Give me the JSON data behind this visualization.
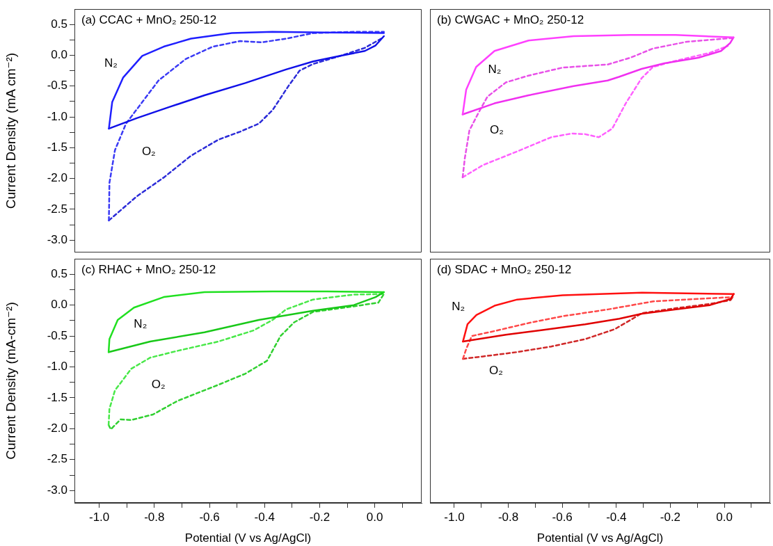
{
  "chart_data": [
    {
      "type": "line",
      "title": "(a) CCAC + MnO₂ 250-12",
      "ylabel": "Current Density (mA cm⁻²)",
      "tick_labels": "y",
      "xlim": [
        -1.09,
        0.17
      ],
      "ylim": [
        -3.2,
        0.75
      ],
      "yticks": [
        {
          "value": 0.5,
          "label": "0.5"
        },
        {
          "value": 0.25,
          "label": null
        },
        {
          "value": 0,
          "label": "0.0"
        },
        {
          "value": -0.25,
          "label": null
        },
        {
          "value": -0.5,
          "label": "-0.5"
        },
        {
          "value": -0.75,
          "label": null
        },
        {
          "value": -1.0,
          "label": "-1.0"
        },
        {
          "value": -1.25,
          "label": null
        },
        {
          "value": -1.5,
          "label": "-1.5"
        },
        {
          "value": -1.75,
          "label": null
        },
        {
          "value": -2.0,
          "label": "-2.0"
        },
        {
          "value": -2.25,
          "label": null
        },
        {
          "value": -2.5,
          "label": "-2.5"
        },
        {
          "value": -2.75,
          "label": null
        },
        {
          "value": -3.0,
          "label": "-3.0"
        }
      ],
      "series": [
        {
          "name": "N₂",
          "color": "#1f1fff",
          "line_style": "solid",
          "x": [
            -0.965,
            -0.953,
            -0.913,
            -0.844,
            -0.766,
            -0.667,
            -0.519,
            -0.372,
            -0.175,
            0.033
          ],
          "values": [
            -1.19,
            -0.76,
            -0.36,
            -0.01,
            0.14,
            0.27,
            0.36,
            0.38,
            0.37,
            0.36
          ]
        },
        {
          "color": "#1010e8",
          "line_style": "solid",
          "x": [
            -0.965,
            -0.864,
            -0.746,
            -0.618,
            -0.47,
            -0.322,
            -0.223,
            -0.125,
            -0.036,
            0.003,
            0.033
          ],
          "values": [
            -1.19,
            -1.02,
            -0.84,
            -0.65,
            -0.45,
            -0.23,
            -0.1,
            -0.01,
            0.07,
            0.16,
            0.31
          ]
        },
        {
          "name": "O₂",
          "color": "#3a3af5",
          "line_style": "dashed",
          "x": [
            -0.965,
            -0.963,
            -0.943,
            -0.903,
            -0.844,
            -0.785,
            -0.686,
            -0.588,
            -0.489,
            -0.41,
            -0.322,
            -0.223,
            -0.076,
            0.033
          ],
          "values": [
            -2.68,
            -2.07,
            -1.54,
            -1.11,
            -0.76,
            -0.41,
            -0.06,
            0.14,
            0.23,
            0.21,
            0.27,
            0.36,
            0.38,
            0.38
          ]
        },
        {
          "color": "#2b2bd8",
          "line_style": "dashed",
          "x": [
            -0.965,
            -0.864,
            -0.765,
            -0.667,
            -0.568,
            -0.489,
            -0.421,
            -0.371,
            -0.312,
            -0.273,
            -0.223,
            -0.125,
            -0.036,
            0.023
          ],
          "values": [
            -2.68,
            -2.29,
            -1.98,
            -1.63,
            -1.37,
            -1.24,
            -1.11,
            -0.89,
            -0.49,
            -0.25,
            -0.14,
            -0.01,
            0.12,
            0.27
          ]
        }
      ]
    },
    {
      "type": "line",
      "title": "(b) CWGAC + MnO₂ 250-12",
      "tick_labels": false,
      "xlim": [
        -1.09,
        0.17
      ],
      "ylim": [
        -3.2,
        0.75
      ],
      "series": [
        {
          "name": "N₂",
          "color": "#ff40ff",
          "line_style": "solid",
          "x": [
            -0.969,
            -0.956,
            -0.919,
            -0.851,
            -0.725,
            -0.558,
            -0.348,
            -0.18,
            0.034
          ],
          "values": [
            -0.96,
            -0.56,
            -0.19,
            0.07,
            0.24,
            0.31,
            0.33,
            0.33,
            0.29
          ]
        },
        {
          "color": "#f030f0",
          "line_style": "solid",
          "x": [
            -0.969,
            -0.851,
            -0.725,
            -0.558,
            -0.432,
            -0.39,
            -0.306,
            -0.222,
            -0.096,
            -0.012,
            0.022,
            0.034
          ],
          "values": [
            -0.96,
            -0.78,
            -0.65,
            -0.5,
            -0.41,
            -0.35,
            -0.22,
            -0.13,
            -0.04,
            0.07,
            0.2,
            0.29
          ]
        },
        {
          "name": "O₂",
          "color": "#e850e8",
          "line_style": "dashed",
          "x": [
            -0.969,
            -0.961,
            -0.944,
            -0.91,
            -0.877,
            -0.809,
            -0.725,
            -0.599,
            -0.432,
            -0.348,
            -0.264,
            -0.138,
            0.03
          ],
          "values": [
            -1.98,
            -1.67,
            -1.22,
            -0.93,
            -0.67,
            -0.44,
            -0.33,
            -0.2,
            -0.15,
            -0.04,
            0.11,
            0.22,
            0.28
          ]
        },
        {
          "color": "#ff60ff",
          "line_style": "dashed",
          "x": [
            -0.969,
            -0.893,
            -0.767,
            -0.641,
            -0.566,
            -0.516,
            -0.465,
            -0.415,
            -0.365,
            -0.306,
            -0.264,
            -0.18,
            -0.054,
            0.013
          ],
          "values": [
            -1.98,
            -1.78,
            -1.56,
            -1.33,
            -1.27,
            -1.28,
            -1.33,
            -1.19,
            -0.78,
            -0.37,
            -0.19,
            -0.09,
            0.04,
            0.15
          ]
        }
      ]
    },
    {
      "type": "line",
      "title": "(c) RHAC + MnO₂ 250-12",
      "xlabel": "Potential (V vs Ag/AgCl)",
      "ylabel": "Current Density (mA-cm⁻²)",
      "xlim": [
        -1.09,
        0.17
      ],
      "ylim": [
        -3.2,
        0.75
      ],
      "xticks": [
        {
          "value": -1.0,
          "label": "-1.0"
        },
        {
          "value": -0.9,
          "label": null
        },
        {
          "value": -0.8,
          "label": "-0.8"
        },
        {
          "value": -0.7,
          "label": null
        },
        {
          "value": -0.6,
          "label": "-0.6"
        },
        {
          "value": -0.5,
          "label": null
        },
        {
          "value": -0.4,
          "label": "-0.4"
        },
        {
          "value": -0.3,
          "label": null
        },
        {
          "value": -0.2,
          "label": "-0.2"
        },
        {
          "value": -0.1,
          "label": null
        },
        {
          "value": 0,
          "label": "0.0"
        },
        {
          "value": 0.1,
          "label": null
        }
      ],
      "yticks": [
        {
          "value": 0.5,
          "label": "0.5"
        },
        {
          "value": 0.25,
          "label": null
        },
        {
          "value": 0,
          "label": "0.0"
        },
        {
          "value": -0.25,
          "label": null
        },
        {
          "value": -0.5,
          "label": "-0.5"
        },
        {
          "value": -0.75,
          "label": null
        },
        {
          "value": -1.0,
          "label": "-1.0"
        },
        {
          "value": -1.25,
          "label": null
        },
        {
          "value": -1.5,
          "label": "-1.5"
        },
        {
          "value": -1.75,
          "label": null
        },
        {
          "value": -2.0,
          "label": "-2.0"
        },
        {
          "value": -2.25,
          "label": null
        },
        {
          "value": -2.5,
          "label": "-2.5"
        },
        {
          "value": -2.75,
          "label": null
        },
        {
          "value": -3.0,
          "label": "-3.0"
        }
      ],
      "series": [
        {
          "name": "N₂",
          "color": "#20e020",
          "line_style": "solid",
          "x": [
            -0.966,
            -0.963,
            -0.933,
            -0.874,
            -0.766,
            -0.618,
            -0.371,
            -0.174,
            0.033
          ],
          "values": [
            -0.76,
            -0.55,
            -0.24,
            -0.04,
            0.13,
            0.21,
            0.22,
            0.22,
            0.21
          ]
        },
        {
          "color": "#18c818",
          "line_style": "solid",
          "x": [
            -0.966,
            -0.815,
            -0.618,
            -0.421,
            -0.224,
            -0.076,
            0.003,
            0.033
          ],
          "values": [
            -0.76,
            -0.59,
            -0.44,
            -0.24,
            -0.09,
            0.0,
            0.13,
            0.21
          ]
        },
        {
          "name": "O₂",
          "color": "#48e848",
          "line_style": "dashed",
          "x": [
            -0.966,
            -0.963,
            -0.943,
            -0.884,
            -0.815,
            -0.716,
            -0.568,
            -0.44,
            -0.371,
            -0.322,
            -0.224,
            -0.076,
            0.033
          ],
          "values": [
            -1.94,
            -1.68,
            -1.38,
            -1.03,
            -0.85,
            -0.74,
            -0.59,
            -0.41,
            -0.24,
            -0.07,
            0.09,
            0.17,
            0.18
          ]
        },
        {
          "color": "#30d030",
          "line_style": "dashed",
          "x": [
            -0.966,
            -0.958,
            -0.923,
            -0.884,
            -0.805,
            -0.716,
            -0.568,
            -0.47,
            -0.391,
            -0.342,
            -0.293,
            -0.224,
            -0.076,
            0.013,
            0.033
          ],
          "values": [
            -1.94,
            -2.01,
            -1.85,
            -1.86,
            -1.77,
            -1.55,
            -1.29,
            -1.11,
            -0.9,
            -0.5,
            -0.28,
            -0.11,
            -0.02,
            0.04,
            0.18
          ]
        }
      ]
    },
    {
      "type": "line",
      "title": "(d) SDAC + MnO₂ 250-12",
      "xlabel": "Potential (V vs Ag/AgCl)",
      "tick_labels": "x",
      "xlim": [
        -1.09,
        0.17
      ],
      "ylim": [
        -3.2,
        0.75
      ],
      "xticks": [
        {
          "value": -1.0,
          "label": "-1.0"
        },
        {
          "value": -0.9,
          "label": null
        },
        {
          "value": -0.8,
          "label": "-0.8"
        },
        {
          "value": -0.7,
          "label": null
        },
        {
          "value": -0.6,
          "label": "-0.6"
        },
        {
          "value": -0.5,
          "label": null
        },
        {
          "value": -0.4,
          "label": "-0.4"
        },
        {
          "value": -0.3,
          "label": null
        },
        {
          "value": -0.2,
          "label": "-0.2"
        },
        {
          "value": -0.1,
          "label": null
        },
        {
          "value": 0,
          "label": "0.0"
        },
        {
          "value": 0.1,
          "label": null
        }
      ],
      "series": [
        {
          "name": "N₂",
          "color": "#ff1010",
          "line_style": "solid",
          "x": [
            -0.968,
            -0.951,
            -0.918,
            -0.851,
            -0.767,
            -0.599,
            -0.305,
            0.035
          ],
          "values": [
            -0.59,
            -0.31,
            -0.16,
            -0.01,
            0.09,
            0.16,
            0.2,
            0.18
          ]
        },
        {
          "color": "#e00000",
          "line_style": "solid",
          "x": [
            -0.968,
            -0.809,
            -0.683,
            -0.515,
            -0.389,
            -0.305,
            -0.179,
            -0.053,
            0.023,
            0.035
          ],
          "values": [
            -0.59,
            -0.48,
            -0.41,
            -0.31,
            -0.22,
            -0.14,
            -0.07,
            0.0,
            0.1,
            0.18
          ]
        },
        {
          "name": "O₂",
          "color": "#ff4848",
          "line_style": "dashed",
          "x": [
            -0.968,
            -0.955,
            -0.935,
            -0.851,
            -0.725,
            -0.599,
            -0.431,
            -0.263,
            -0.095,
            0.031
          ],
          "values": [
            -0.87,
            -0.7,
            -0.5,
            -0.42,
            -0.29,
            -0.18,
            -0.07,
            0.06,
            0.1,
            0.13
          ]
        },
        {
          "color": "#d02828",
          "line_style": "dashed",
          "x": [
            -0.968,
            -0.893,
            -0.767,
            -0.641,
            -0.515,
            -0.406,
            -0.347,
            -0.305,
            -0.179,
            -0.053,
            0.023,
            0.031
          ],
          "values": [
            -0.87,
            -0.83,
            -0.76,
            -0.67,
            -0.55,
            -0.39,
            -0.24,
            -0.13,
            -0.05,
            0.02,
            0.08,
            0.13
          ]
        }
      ]
    }
  ]
}
